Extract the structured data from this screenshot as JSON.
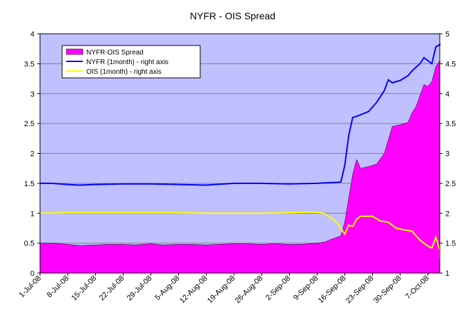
{
  "chart_data": {
    "type": "area",
    "title": "NYFR - OIS Spread",
    "x_tick_labels": [
      "1-Jul-08",
      "8-Jul-08",
      "15-Jul-08",
      "22-Jul-08",
      "29-Jul-08",
      "5-Aug-08",
      "12-Aug-08",
      "19-Aug-08",
      "26-Aug-08",
      "2-Sep-08",
      "9-Sep-08",
      "16-Sep-08",
      "23-Sep-08",
      "30-Sep-08",
      "7-Oct-08"
    ],
    "x_range": [
      "2008-07-01",
      "2008-10-10"
    ],
    "y_left": {
      "range": [
        0,
        4
      ],
      "ticks": [
        "0",
        "0.5",
        "1",
        "1.5",
        "2",
        "2.5",
        "3",
        "3.5",
        "4"
      ],
      "tick_values": [
        0,
        0.5,
        1,
        1.5,
        2,
        2.5,
        3,
        3.5,
        4
      ]
    },
    "y_right": {
      "range": [
        1,
        5
      ],
      "ticks": [
        "1",
        "1.5",
        "2",
        "2.5",
        "3",
        "3.5",
        "4",
        "4.5",
        "5"
      ],
      "tick_values": [
        1,
        1.5,
        2,
        2.5,
        3,
        3.5,
        4,
        4.5,
        5
      ]
    },
    "grid": true,
    "legend_position": "top-left",
    "series": [
      {
        "name": "NYFR-OIS Spread",
        "kind": "area",
        "axis": "left",
        "color": "#ff00ff",
        "points": [
          [
            "2008-07-01",
            0.5
          ],
          [
            "2008-07-04",
            0.5
          ],
          [
            "2008-07-08",
            0.48
          ],
          [
            "2008-07-11",
            0.46
          ],
          [
            "2008-07-15",
            0.47
          ],
          [
            "2008-07-18",
            0.48
          ],
          [
            "2008-07-22",
            0.48
          ],
          [
            "2008-07-25",
            0.47
          ],
          [
            "2008-07-29",
            0.49
          ],
          [
            "2008-08-01",
            0.47
          ],
          [
            "2008-08-05",
            0.48
          ],
          [
            "2008-08-08",
            0.48
          ],
          [
            "2008-08-12",
            0.47
          ],
          [
            "2008-08-15",
            0.48
          ],
          [
            "2008-08-19",
            0.49
          ],
          [
            "2008-08-22",
            0.49
          ],
          [
            "2008-08-26",
            0.48
          ],
          [
            "2008-08-29",
            0.49
          ],
          [
            "2008-09-02",
            0.48
          ],
          [
            "2008-09-05",
            0.48
          ],
          [
            "2008-09-09",
            0.5
          ],
          [
            "2008-09-11",
            0.52
          ],
          [
            "2008-09-12",
            0.55
          ],
          [
            "2008-09-15",
            0.62
          ],
          [
            "2008-09-16",
            0.85
          ],
          [
            "2008-09-17",
            1.25
          ],
          [
            "2008-09-18",
            1.65
          ],
          [
            "2008-09-19",
            1.9
          ],
          [
            "2008-09-20",
            1.75
          ],
          [
            "2008-09-22",
            1.78
          ],
          [
            "2008-09-24",
            1.82
          ],
          [
            "2008-09-26",
            2.0
          ],
          [
            "2008-09-28",
            2.45
          ],
          [
            "2008-09-30",
            2.48
          ],
          [
            "2008-10-02",
            2.52
          ],
          [
            "2008-10-03",
            2.68
          ],
          [
            "2008-10-04",
            2.78
          ],
          [
            "2008-10-06",
            3.15
          ],
          [
            "2008-10-07",
            3.12
          ],
          [
            "2008-10-08",
            3.2
          ],
          [
            "2008-10-09",
            3.45
          ],
          [
            "2008-10-10",
            3.55
          ]
        ]
      },
      {
        "name": "NYFR (1month) - right axis",
        "kind": "line",
        "axis": "right",
        "color": "#0000ff",
        "points": [
          [
            "2008-07-01",
            2.5
          ],
          [
            "2008-07-04",
            2.5
          ],
          [
            "2008-07-08",
            2.48
          ],
          [
            "2008-07-11",
            2.47
          ],
          [
            "2008-07-15",
            2.48
          ],
          [
            "2008-07-22",
            2.49
          ],
          [
            "2008-07-29",
            2.49
          ],
          [
            "2008-08-05",
            2.48
          ],
          [
            "2008-08-12",
            2.47
          ],
          [
            "2008-08-19",
            2.5
          ],
          [
            "2008-08-26",
            2.5
          ],
          [
            "2008-09-02",
            2.49
          ],
          [
            "2008-09-09",
            2.5
          ],
          [
            "2008-09-12",
            2.51
          ],
          [
            "2008-09-15",
            2.52
          ],
          [
            "2008-09-16",
            2.8
          ],
          [
            "2008-09-17",
            3.3
          ],
          [
            "2008-09-18",
            3.6
          ],
          [
            "2008-09-19",
            3.62
          ],
          [
            "2008-09-22",
            3.7
          ],
          [
            "2008-09-24",
            3.85
          ],
          [
            "2008-09-26",
            4.05
          ],
          [
            "2008-09-27",
            4.23
          ],
          [
            "2008-09-28",
            4.18
          ],
          [
            "2008-09-30",
            4.22
          ],
          [
            "2008-10-02",
            4.3
          ],
          [
            "2008-10-03",
            4.38
          ],
          [
            "2008-10-05",
            4.5
          ],
          [
            "2008-10-06",
            4.6
          ],
          [
            "2008-10-07",
            4.55
          ],
          [
            "2008-10-08",
            4.5
          ],
          [
            "2008-10-09",
            4.78
          ],
          [
            "2008-10-10",
            4.82
          ],
          [
            "2008-10-11",
            4.8
          ]
        ]
      },
      {
        "name": "OIS (1month) - right axis",
        "kind": "line",
        "axis": "right",
        "color": "#ffff00",
        "points": [
          [
            "2008-07-01",
            2.0
          ],
          [
            "2008-07-08",
            2.01
          ],
          [
            "2008-07-15",
            2.01
          ],
          [
            "2008-07-22",
            2.01
          ],
          [
            "2008-07-29",
            2.01
          ],
          [
            "2008-08-05",
            2.01
          ],
          [
            "2008-08-12",
            2.0
          ],
          [
            "2008-08-19",
            2.0
          ],
          [
            "2008-08-26",
            2.0
          ],
          [
            "2008-09-02",
            2.01
          ],
          [
            "2008-09-08",
            2.02
          ],
          [
            "2008-09-10",
            2.01
          ],
          [
            "2008-09-12",
            1.95
          ],
          [
            "2008-09-14",
            1.85
          ],
          [
            "2008-09-16",
            1.65
          ],
          [
            "2008-09-17",
            1.8
          ],
          [
            "2008-09-18",
            1.78
          ],
          [
            "2008-09-19",
            1.9
          ],
          [
            "2008-09-20",
            1.95
          ],
          [
            "2008-09-23",
            1.95
          ],
          [
            "2008-09-25",
            1.87
          ],
          [
            "2008-09-27",
            1.85
          ],
          [
            "2008-09-29",
            1.75
          ],
          [
            "2008-10-01",
            1.72
          ],
          [
            "2008-10-03",
            1.7
          ],
          [
            "2008-10-05",
            1.55
          ],
          [
            "2008-10-07",
            1.45
          ],
          [
            "2008-10-08",
            1.42
          ],
          [
            "2008-10-09",
            1.6
          ],
          [
            "2008-10-10",
            1.38
          ],
          [
            "2008-10-11",
            1.25
          ]
        ]
      }
    ]
  },
  "colors": {
    "plot_background": "#c0c0ff",
    "gridline": "#808080",
    "axis": "#000000"
  }
}
